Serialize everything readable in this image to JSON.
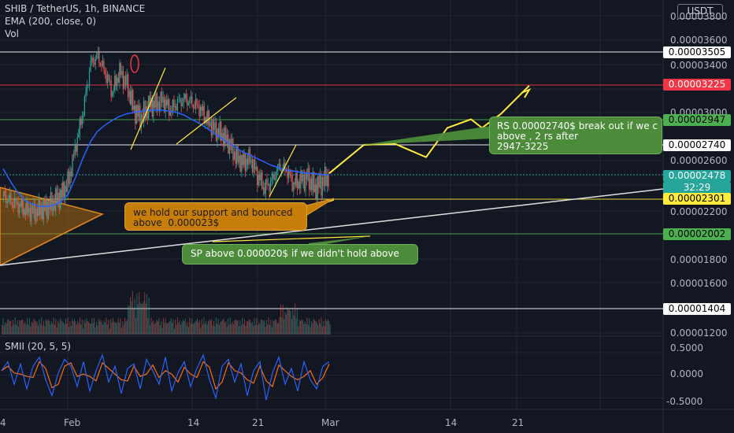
{
  "header": {
    "symbol_line": "SHIB / TetherUS, 1h, BINANCE",
    "ema_line": "EMA (200, close, 0)",
    "vol_line": "Vol",
    "currency": "USDT"
  },
  "colors": {
    "background": "#131722",
    "grid": "#232734",
    "candle_up": "#26a69a",
    "candle_down": "#ef5350",
    "ema": "#2962ff",
    "trend": "#ffeb3b",
    "resistance_red": "#f23645",
    "support_green": "#4caf50",
    "annotation_orange": "#c77d0a",
    "annotation_green": "#4c8b3a",
    "smii_main": "#2962ff",
    "smii_signal": "#ff6d00"
  },
  "chart_data": {
    "type": "candlestick",
    "title": "SHIB / TetherUS, 1h, BINANCE",
    "ylim": [
      1.16e-05,
      3.9e-05
    ],
    "yticks": [
      "0.00003800",
      "0.00003600",
      "0.00003400",
      "0.00003000",
      "0.00002600",
      "0.00002200",
      "0.00001800",
      "0.00001600",
      "0.00001200"
    ],
    "xticks": [
      "4",
      "Feb",
      "14",
      "21",
      "Mar",
      "14",
      "21"
    ],
    "price_levels": [
      {
        "label": "0.00003505",
        "value": 3.505e-05,
        "color": "#ffffff",
        "text_color": "#000000"
      },
      {
        "label": "0.00003225",
        "value": 3.225e-05,
        "color": "#f23645",
        "text_color": "#ffffff"
      },
      {
        "label": "0.00002947",
        "value": 2.947e-05,
        "color": "#4caf50",
        "text_color": "#000000"
      },
      {
        "label": "0.00002740",
        "value": 2.74e-05,
        "color": "#ffffff",
        "text_color": "#000000"
      },
      {
        "label": "0.00002301",
        "value": 2.301e-05,
        "color": "#ffeb3b",
        "text_color": "#000000"
      },
      {
        "label": "0.00002002",
        "value": 2.002e-05,
        "color": "#4caf50",
        "text_color": "#000000"
      },
      {
        "label": "0.00001404",
        "value": 1.404e-05,
        "color": "#ffffff",
        "text_color": "#000000"
      }
    ],
    "last_price": {
      "label": "0.00002478",
      "countdown": "32:29",
      "value": 2.478e-05,
      "color": "#26a69a"
    },
    "price_series": [
      2.32e-05,
      2.28e-05,
      2.25e-05,
      2.21e-05,
      2.19e-05,
      2.21e-05,
      2.23e-05,
      2.28e-05,
      2.33e-05,
      2.44e-05,
      2.75e-05,
      3.02e-05,
      3.41e-05,
      3.47e-05,
      3.33e-05,
      3.17e-05,
      3.34e-05,
      3.23e-05,
      3.02e-05,
      2.96e-05,
      3.06e-05,
      3.07e-05,
      3.1e-05,
      3.02e-05,
      3.08e-05,
      3.11e-05,
      3.08e-05,
      3.04e-05,
      2.95e-05,
      2.87e-05,
      2.83e-05,
      2.76e-05,
      2.64e-05,
      2.58e-05,
      2.62e-05,
      2.48e-05,
      2.38e-05,
      2.43e-05,
      2.55e-05,
      2.52e-05,
      2.41e-05,
      2.44e-05,
      2.46e-05,
      2.38e-05,
      2.43e-05,
      2.48e-05
    ],
    "ema_series": [
      2.53e-05,
      2.43e-05,
      2.35e-05,
      2.29e-05,
      2.26e-05,
      2.24e-05,
      2.24e-05,
      2.25e-05,
      2.28e-05,
      2.34e-05,
      2.46e-05,
      2.62e-05,
      2.76e-05,
      2.85e-05,
      2.9e-05,
      2.94e-05,
      2.97e-05,
      2.99e-05,
      3e-05,
      3.01e-05,
      3.02e-05,
      3.02e-05,
      3.02e-05,
      3.01e-05,
      3e-05,
      2.98e-05,
      2.95e-05,
      2.92e-05,
      2.88e-05,
      2.84e-05,
      2.8e-05,
      2.76e-05,
      2.72e-05,
      2.68e-05,
      2.65e-05,
      2.62e-05,
      2.59e-05,
      2.56e-05,
      2.54e-05,
      2.52e-05,
      2.51e-05,
      2.5e-05,
      2.49e-05,
      2.49e-05,
      2.48e-05,
      2.48e-05
    ],
    "projection": [
      2.49e-05,
      2.74e-05,
      2.75e-05,
      2.63e-05,
      2.88e-05,
      2.95e-05,
      2.88e-05,
      2.99e-05,
      3.22e-05
    ],
    "indicator": {
      "name": "SMII (20, 5, 5)",
      "ylim": [
        -0.58,
        0.62
      ],
      "yticks": [
        "0.5000",
        "0.0000",
        "-0.5000"
      ],
      "series": [
        0.1,
        0.3,
        -0.2,
        0.25,
        -0.3,
        0.2,
        0.4,
        -0.1,
        -0.45,
        0.05,
        0.35,
        0.2,
        -0.25,
        0.3,
        -0.35,
        0.1,
        0.45,
        -0.15,
        0.2,
        -0.4,
        0.15,
        0.25,
        -0.3,
        0.35,
        0.1,
        -0.2,
        0.4,
        -0.35,
        0.05,
        0.3,
        -0.25,
        0.15,
        0.45,
        -0.1,
        -0.5,
        0.2,
        0.35,
        -0.15,
        0.25,
        -0.45,
        0.1,
        0.3,
        -0.55,
        0.05,
        0.4,
        -0.2,
        0.15,
        -0.35,
        0.3,
        -0.1,
        -0.3,
        0.2,
        0.3
      ]
    }
  },
  "annotations": {
    "support_note": "we hold our support and bounced\nabove  0.000023$",
    "sp_note": "SP above 0.000020$ if we didn't hold above",
    "rs_note": "RS 0.00002740$ break out if we c\nabove , 2 rs after\n2947-3225"
  }
}
